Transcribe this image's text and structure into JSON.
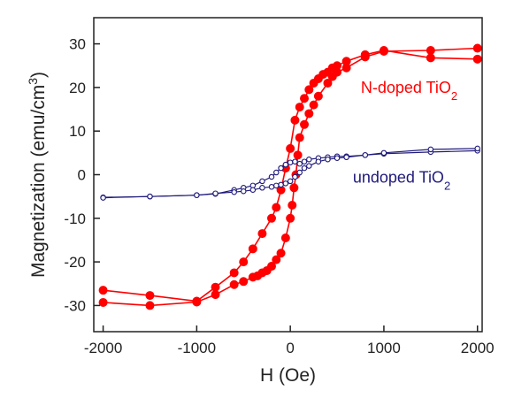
{
  "chart_data": {
    "type": "scatter",
    "xlabel": "H (Oe)",
    "ylabel_main": "Magnetization (emu/cm",
    "ylabel_sup": "3",
    "ylabel_close": ")",
    "xlim": [
      -2100,
      2050
    ],
    "ylim": [
      -36,
      36
    ],
    "xticks": [
      -2000,
      -1000,
      0,
      1000,
      2000
    ],
    "xtick_labels": [
      "-2000",
      "-1000",
      "0",
      "1000",
      "2000"
    ],
    "yticks": [
      -30,
      -20,
      -10,
      0,
      10,
      20,
      30
    ],
    "ytick_labels": [
      "-30",
      "-20",
      "-10",
      "0",
      "10",
      "20",
      "30"
    ],
    "series": [
      {
        "label_main": "N-doped TiO",
        "label_sub": "2",
        "color": "#ff0000",
        "marker": "filled-circle",
        "label_at": [
          1270,
          20
        ],
        "branches": [
          [
            [
              -2000,
              -26.5
            ],
            [
              -1500,
              -27.7
            ],
            [
              -1000,
              -29
            ],
            [
              -800,
              -25.8
            ],
            [
              -600,
              -22.5
            ],
            [
              -500,
              -20
            ],
            [
              -400,
              -17
            ],
            [
              -300,
              -13.5
            ],
            [
              -200,
              -10
            ],
            [
              -150,
              -7.5
            ],
            [
              -100,
              -3.5
            ],
            [
              -50,
              1.5
            ],
            [
              0,
              6
            ],
            [
              50,
              12.5
            ],
            [
              100,
              15.5
            ],
            [
              150,
              17.5
            ],
            [
              200,
              19.5
            ],
            [
              250,
              21
            ],
            [
              300,
              22
            ],
            [
              350,
              23
            ],
            [
              400,
              23.5
            ],
            [
              450,
              24.5
            ],
            [
              500,
              25
            ],
            [
              600,
              26
            ],
            [
              800,
              27.5
            ],
            [
              1000,
              28.5
            ],
            [
              1500,
              26.8
            ],
            [
              2000,
              26.5
            ]
          ],
          [
            [
              2000,
              29
            ],
            [
              1500,
              28.5
            ],
            [
              1000,
              28.3
            ],
            [
              800,
              27
            ],
            [
              600,
              24.5
            ],
            [
              500,
              23.5
            ],
            [
              450,
              22.5
            ],
            [
              400,
              21
            ],
            [
              300,
              18
            ],
            [
              250,
              16
            ],
            [
              200,
              14
            ],
            [
              150,
              11.5
            ],
            [
              100,
              8.5
            ],
            [
              80,
              4.5
            ],
            [
              60,
              0
            ],
            [
              40,
              -3
            ],
            [
              20,
              -7
            ],
            [
              0,
              -10
            ],
            [
              -50,
              -14.5
            ],
            [
              -100,
              -18
            ],
            [
              -150,
              -19.5
            ],
            [
              -200,
              -21
            ],
            [
              -250,
              -22
            ],
            [
              -300,
              -22.5
            ],
            [
              -350,
              -23.2
            ],
            [
              -400,
              -23.5
            ],
            [
              -500,
              -24.5
            ],
            [
              -600,
              -25.2
            ],
            [
              -800,
              -27.5
            ],
            [
              -1000,
              -29.2
            ],
            [
              -1500,
              -30
            ],
            [
              -2000,
              -29.3
            ]
          ]
        ]
      },
      {
        "label_main": "undoped TiO",
        "label_sub": "2",
        "color": "#1f1a7a",
        "marker": "open-circle",
        "label_at": [
          1190,
          -0.6
        ],
        "branches": [
          [
            [
              -2000,
              -5.2
            ],
            [
              -1500,
              -5
            ],
            [
              -1000,
              -4.7
            ],
            [
              -800,
              -4.4
            ],
            [
              -600,
              -3.5
            ],
            [
              -500,
              -3
            ],
            [
              -400,
              -2.5
            ],
            [
              -300,
              -1.5
            ],
            [
              -200,
              -0.5
            ],
            [
              -150,
              0.5
            ],
            [
              -100,
              1.5
            ],
            [
              -50,
              2.3
            ],
            [
              0,
              2.8
            ],
            [
              50,
              3
            ],
            [
              100,
              2.5
            ],
            [
              150,
              3
            ],
            [
              200,
              3.5
            ],
            [
              300,
              3.8
            ],
            [
              400,
              4
            ],
            [
              500,
              4.2
            ],
            [
              600,
              4.2
            ],
            [
              800,
              4.5
            ],
            [
              1000,
              4.8
            ],
            [
              1500,
              5.2
            ],
            [
              2000,
              5.5
            ]
          ],
          [
            [
              2000,
              6
            ],
            [
              1500,
              5.8
            ],
            [
              1000,
              5
            ],
            [
              800,
              4.5
            ],
            [
              600,
              4
            ],
            [
              500,
              3.8
            ],
            [
              400,
              3.5
            ],
            [
              300,
              3
            ],
            [
              200,
              2
            ],
            [
              150,
              1.5
            ],
            [
              100,
              0.5
            ],
            [
              50,
              -0.5
            ],
            [
              0,
              -1.5
            ],
            [
              -50,
              -2
            ],
            [
              -100,
              -2.3
            ],
            [
              -150,
              -2.5
            ],
            [
              -200,
              -2.8
            ],
            [
              -300,
              -3
            ],
            [
              -400,
              -3.5
            ],
            [
              -500,
              -3.8
            ],
            [
              -600,
              -4
            ],
            [
              -800,
              -4.3
            ],
            [
              -1000,
              -4.7
            ],
            [
              -1500,
              -5
            ],
            [
              -2000,
              -5.3
            ]
          ]
        ]
      }
    ]
  }
}
